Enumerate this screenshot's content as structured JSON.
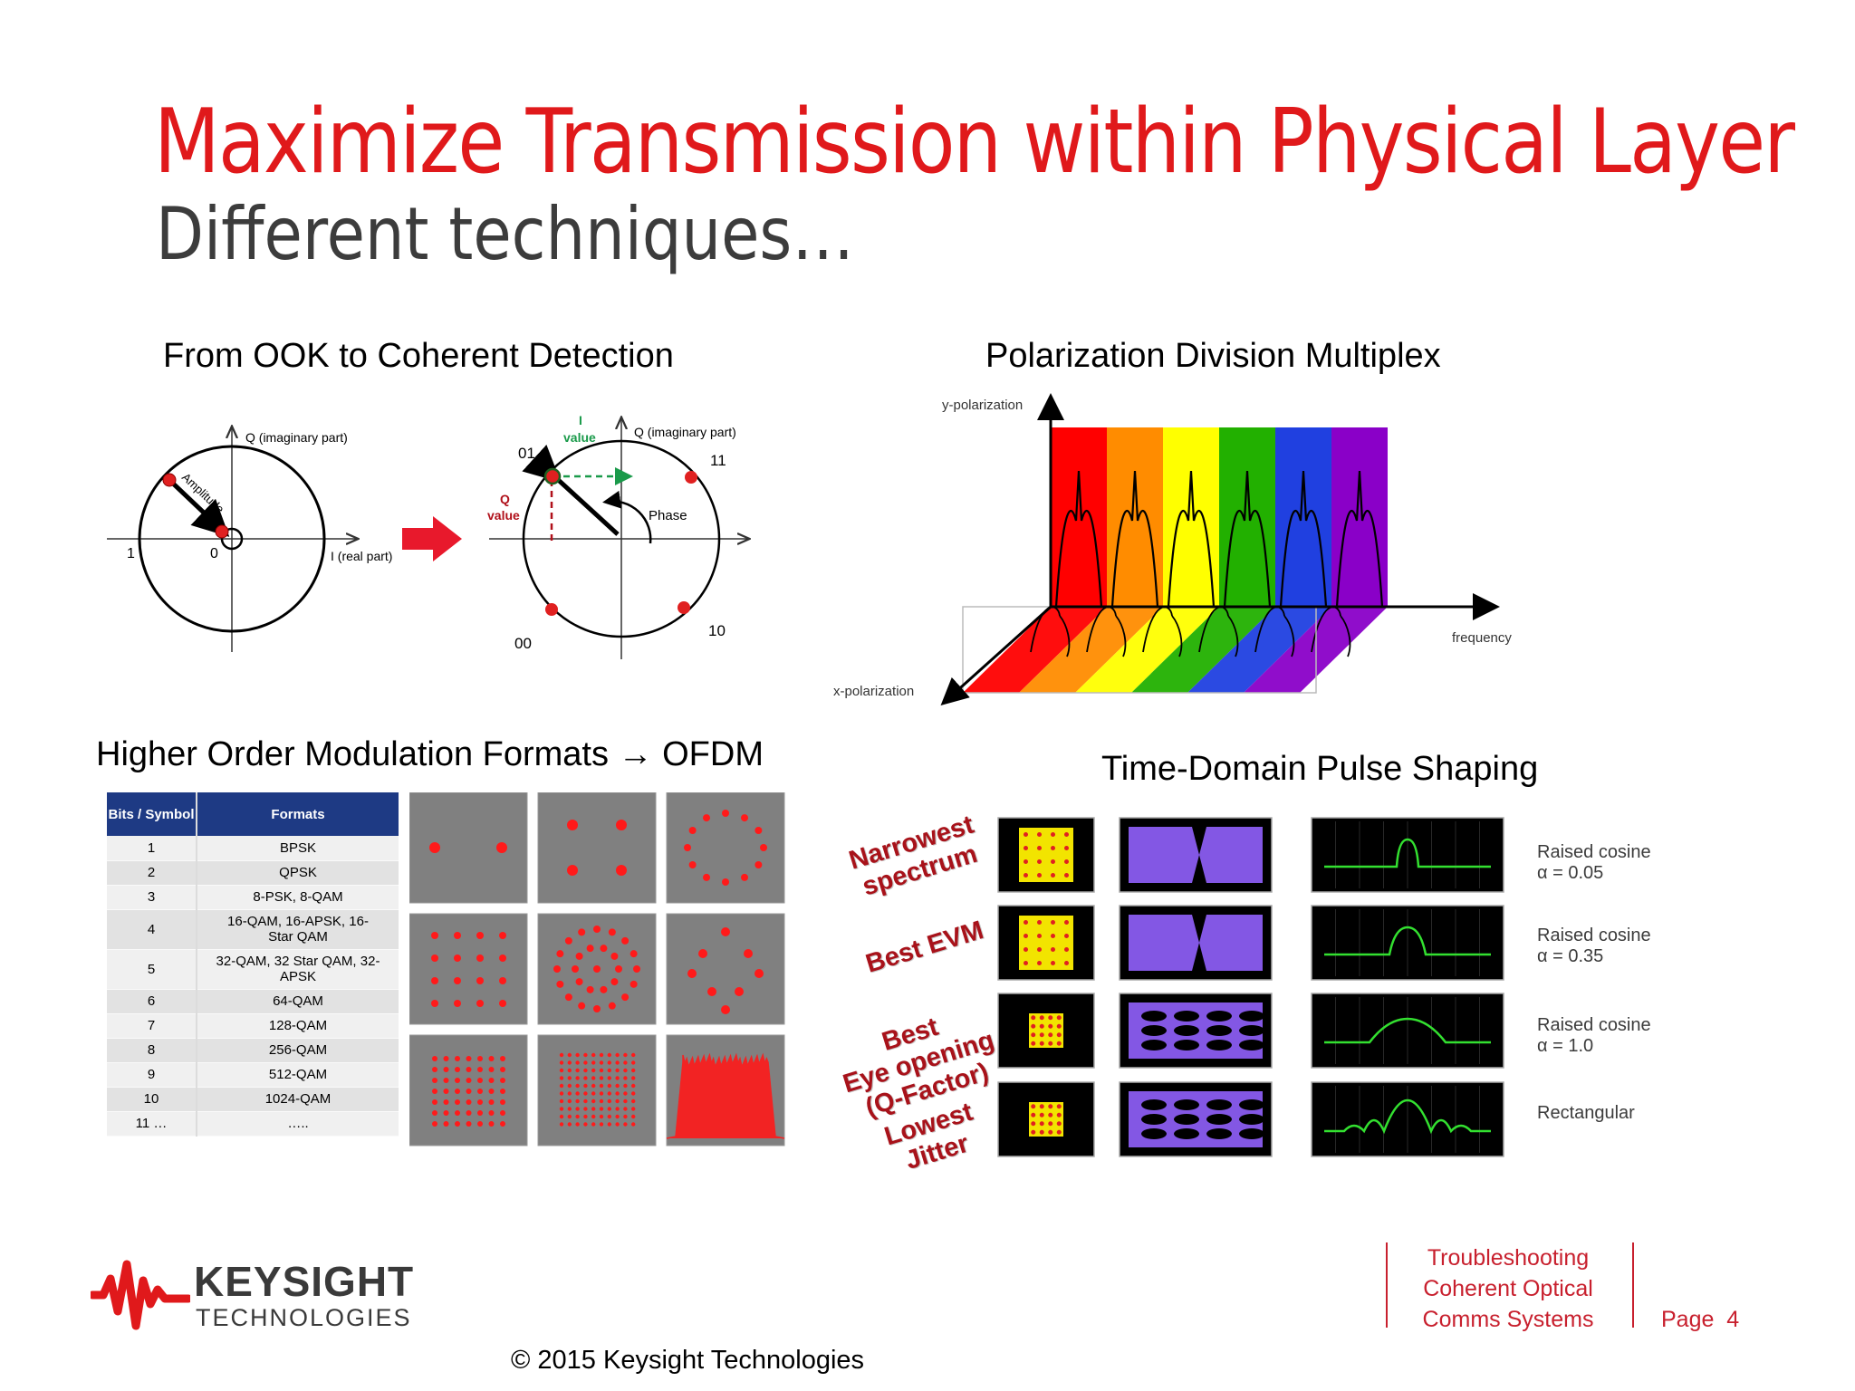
{
  "slide": {
    "title": "Maximize Transmission within Physical Layer",
    "subtitle": "Different techniques…"
  },
  "sections": {
    "ook": "From OOK to Coherent Detection",
    "pdm": "Polarization Division Multiplex",
    "homf": "Higher Order Modulation Formats → OFDM",
    "tdps": "Time-Domain Pulse Shaping"
  },
  "ook_diagram": {
    "q_axis": "Q (imaginary part)",
    "i_axis": "I (real part)",
    "amplitude": "Amplitude",
    "one": "1",
    "zero": "0",
    "i_value": [
      "I",
      "value"
    ],
    "q_value": [
      "Q",
      "value"
    ],
    "q_axis2": "Q (imaginary part)",
    "phase": "Phase",
    "sym01": "01",
    "sym11": "11",
    "sym00": "00",
    "sym10": "10"
  },
  "pdm_diagram": {
    "y_pol": "y-polarization",
    "x_pol": "x-polarization",
    "frequency": "frequency",
    "colors": [
      "#ff0000",
      "#ff8c00",
      "#ffff00",
      "#22b000",
      "#2040e0",
      "#8a00c8"
    ]
  },
  "bits_table": {
    "headers": [
      "Bits / Symbol",
      "Formats"
    ],
    "rows": [
      [
        "1",
        "BPSK"
      ],
      [
        "2",
        "QPSK"
      ],
      [
        "3",
        "8-PSK, 8-QAM"
      ],
      [
        "4",
        "16-QAM, 16-APSK, 16-Star QAM"
      ],
      [
        "5",
        "32-QAM, 32 Star QAM, 32-APSK"
      ],
      [
        "6",
        "64-QAM"
      ],
      [
        "7",
        "128-QAM"
      ],
      [
        "8",
        "256-QAM"
      ],
      [
        "9",
        "512-QAM"
      ],
      [
        "10",
        "1024-QAM"
      ],
      [
        "11 …",
        "….."
      ]
    ]
  },
  "pulse_shaping": {
    "benefits": [
      [
        "Narrowest",
        "spectrum"
      ],
      [
        "Best EVM"
      ],
      [
        "Best",
        "Eye opening",
        "(Q-Factor)"
      ],
      [
        "Lowest",
        "Jitter"
      ]
    ],
    "filters": [
      [
        "Raised cosine",
        "α = 0.05"
      ],
      [
        "Raised cosine",
        "α = 0.35"
      ],
      [
        "Raised cosine",
        "α = 1.0"
      ],
      [
        "Rectangular"
      ]
    ]
  },
  "footer": {
    "brand": "KEYSIGHT",
    "brand_sub": "TECHNOLOGIES",
    "copyright": "© 2015 Keysight Technologies",
    "doc_title": [
      "Troubleshooting",
      "Coherent Optical",
      "Comms Systems"
    ],
    "page": "Page  4",
    "brand_color": "#e0191b"
  }
}
